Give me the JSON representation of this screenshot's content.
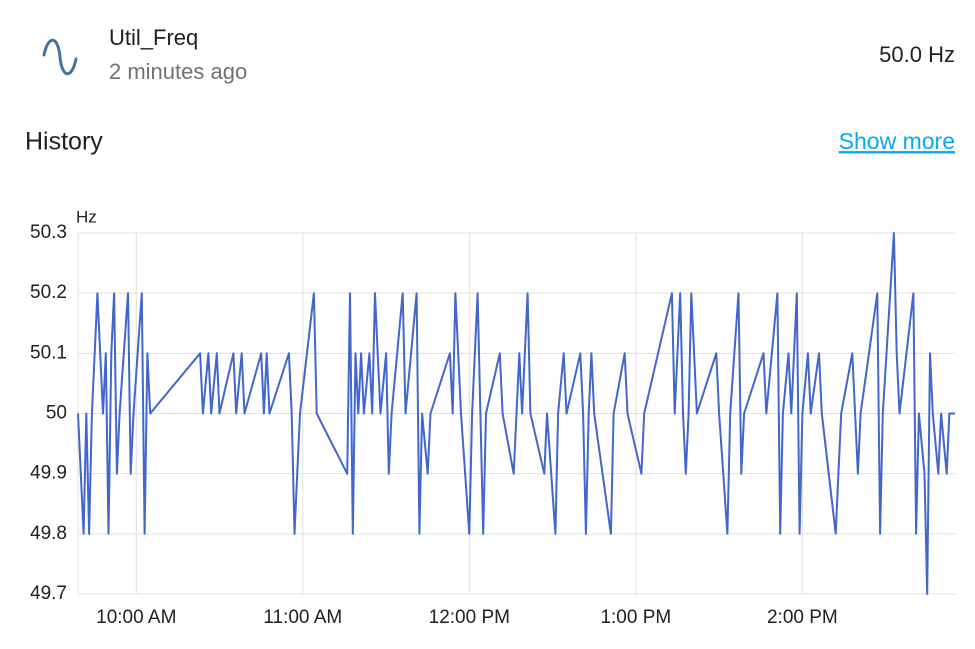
{
  "entity": {
    "name": "Util_Freq",
    "last_changed": "2 minutes ago",
    "state": "50.0 Hz"
  },
  "history": {
    "title": "History",
    "link": "Show more"
  },
  "chart_data": {
    "type": "line",
    "y_label": "Hz",
    "grid": true,
    "x": [
      "9:39 AM",
      "9:41 AM",
      "9:42 AM",
      "9:43 AM",
      "9:44 AM",
      "9:45 AM",
      "9:46 AM",
      "9:47 AM",
      "9:48 AM",
      "9:49 AM",
      "9:50 AM",
      "9:51 AM",
      "9:52 AM",
      "9:53 AM",
      "9:54 AM",
      "9:57 AM",
      "9:58 AM",
      "9:59 AM",
      "10:02 AM",
      "10:03 AM",
      "10:04 AM",
      "10:05 AM",
      "10:23 AM",
      "10:24 AM",
      "10:26 AM",
      "10:27 AM",
      "10:29 AM",
      "10:30 AM",
      "10:35 AM",
      "10:36 AM",
      "10:38 AM",
      "10:39 AM",
      "10:45 AM",
      "10:46 AM",
      "10:47 AM",
      "10:48 AM",
      "10:55 AM",
      "10:56 AM",
      "10:57 AM",
      "10:59 AM",
      "11:04 AM",
      "11:05 AM",
      "11:16 AM",
      "11:17 AM",
      "11:18 AM",
      "11:19 AM",
      "11:20 AM",
      "11:21 AM",
      "11:22 AM",
      "11:24 AM",
      "11:25 AM",
      "11:26 AM",
      "11:27 AM",
      "11:28 AM",
      "11:30 AM",
      "11:31 AM",
      "11:32 AM",
      "11:36 AM",
      "11:37 AM",
      "11:41 AM",
      "11:42 AM",
      "11:43 AM",
      "11:45 AM",
      "11:46 AM",
      "11:53 AM",
      "11:54 AM",
      "11:55 AM",
      "11:56 AM",
      "11:57 AM",
      "12:00 PM",
      "12:01 PM",
      "12:03 PM",
      "12:04 PM",
      "12:05 PM",
      "12:06 PM",
      "12:11 PM",
      "12:12 PM",
      "12:16 PM",
      "12:17 PM",
      "12:18 PM",
      "12:19 PM",
      "12:21 PM",
      "12:22 PM",
      "12:27 PM",
      "12:28 PM",
      "12:31 PM",
      "12:32 PM",
      "12:34 PM",
      "12:35 PM",
      "12:40 PM",
      "12:41 PM",
      "12:42 PM",
      "12:43 PM",
      "12:44 PM",
      "12:45 PM",
      "12:51 PM",
      "12:52 PM",
      "12:56 PM",
      "12:57 PM",
      "1:02 PM",
      "1:03 PM",
      "1:13 PM",
      "1:14 PM",
      "1:16 PM",
      "1:17 PM",
      "1:18 PM",
      "1:19 PM",
      "1:20 PM",
      "1:21 PM",
      "1:22 PM",
      "1:29 PM",
      "1:30 PM",
      "1:33 PM",
      "1:34 PM",
      "1:37 PM",
      "1:38 PM",
      "1:39 PM",
      "1:46 PM",
      "1:47 PM",
      "1:51 PM",
      "1:52 PM",
      "1:53 PM",
      "1:55 PM",
      "1:56 PM",
      "1:58 PM",
      "1:59 PM",
      "2:00 PM",
      "2:02 PM",
      "2:03 PM",
      "2:06 PM",
      "2:07 PM",
      "2:12 PM",
      "2:13 PM",
      "2:14 PM",
      "2:18 PM",
      "2:19 PM",
      "2:20 PM",
      "2:21 PM",
      "2:27 PM",
      "2:28 PM",
      "2:29 PM",
      "2:33 PM",
      "2:34 PM",
      "2:35 PM",
      "2:40 PM",
      "2:41 PM",
      "2:42 PM",
      "2:44 PM",
      "2:45 PM",
      "2:46 PM",
      "2:47 PM",
      "2:49 PM",
      "2:50 PM",
      "2:52 PM",
      "2:53 PM",
      "2:55 PM"
    ],
    "series": [
      {
        "color": "#4266cc",
        "values": [
          50,
          49.8,
          50,
          49.8,
          50,
          50.1,
          50.2,
          50.1,
          50,
          50.1,
          49.8,
          50.1,
          50.2,
          49.9,
          50,
          50.2,
          49.9,
          50,
          50.2,
          49.8,
          50.1,
          50,
          50.1,
          50,
          50.1,
          50,
          50.1,
          50,
          50.1,
          50,
          50.1,
          50,
          50.1,
          50,
          50.1,
          50,
          50.1,
          50,
          49.8,
          50,
          50.2,
          50,
          49.9,
          50.2,
          49.8,
          50.1,
          50,
          50.1,
          50,
          50.1,
          50,
          50.2,
          50.1,
          50,
          50.1,
          49.9,
          50,
          50.2,
          50,
          50.2,
          49.8,
          50,
          49.9,
          50,
          50.1,
          50,
          50.2,
          50.1,
          50,
          49.8,
          50,
          50.2,
          50,
          49.8,
          50,
          50.1,
          50,
          49.9,
          50,
          50.1,
          50,
          50.2,
          50,
          49.9,
          50,
          49.8,
          50,
          50.1,
          50,
          50.1,
          50,
          49.8,
          50,
          50.1,
          50,
          49.8,
          50,
          50.1,
          50,
          49.9,
          50,
          50.2,
          50,
          50.2,
          50,
          49.9,
          50,
          50.2,
          50.1,
          50,
          50.1,
          50,
          49.8,
          50,
          50.2,
          49.9,
          50,
          50.1,
          50,
          50.2,
          49.8,
          50,
          50.1,
          50,
          50.2,
          49.8,
          50,
          50.1,
          50,
          50.1,
          50,
          49.8,
          49.9,
          50,
          50.1,
          50,
          49.9,
          50,
          50.2,
          49.8,
          50,
          50.3,
          50.1,
          50,
          50.2,
          49.8,
          50,
          49.9,
          49.7,
          50.1,
          50,
          49.9,
          50,
          49.9,
          50,
          50
        ]
      }
    ],
    "xlim": [
      "9:39 AM",
      "2:55 PM"
    ],
    "xticks": [
      "10:00 AM",
      "11:00 AM",
      "12:00 PM",
      "1:00 PM",
      "2:00 PM"
    ],
    "ylim": [
      49.7,
      50.3
    ],
    "yticks": [
      50.3,
      50.2,
      50.1,
      50,
      49.9,
      49.8,
      49.7
    ]
  }
}
